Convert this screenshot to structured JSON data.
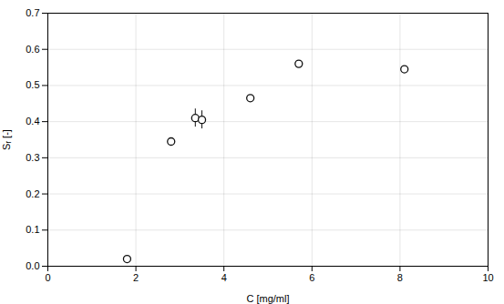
{
  "chart_data": {
    "type": "scatter",
    "xlabel": "C [mg/ml]",
    "ylabel": "Sᵣ [-]",
    "x": [
      1.8,
      2.8,
      4.6,
      5.7,
      8.1,
      3.35,
      3.5
    ],
    "values": [
      0.02,
      0.345,
      0.465,
      0.56,
      0.545,
      0.41,
      0.405
    ],
    "yerr": [
      null,
      null,
      null,
      null,
      null,
      0.025,
      0.025
    ],
    "color": "#111111",
    "marker": "circle",
    "xlim": [
      0,
      10
    ],
    "ylim": [
      0.0,
      0.7
    ],
    "xticks": [
      0,
      2,
      4,
      6,
      8,
      10
    ],
    "yticks": [
      {
        "value": 0.0,
        "label": "0.0"
      },
      0.1,
      0.2,
      0.3,
      0.4,
      0.5,
      0.6,
      0.7
    ],
    "grid": true
  }
}
